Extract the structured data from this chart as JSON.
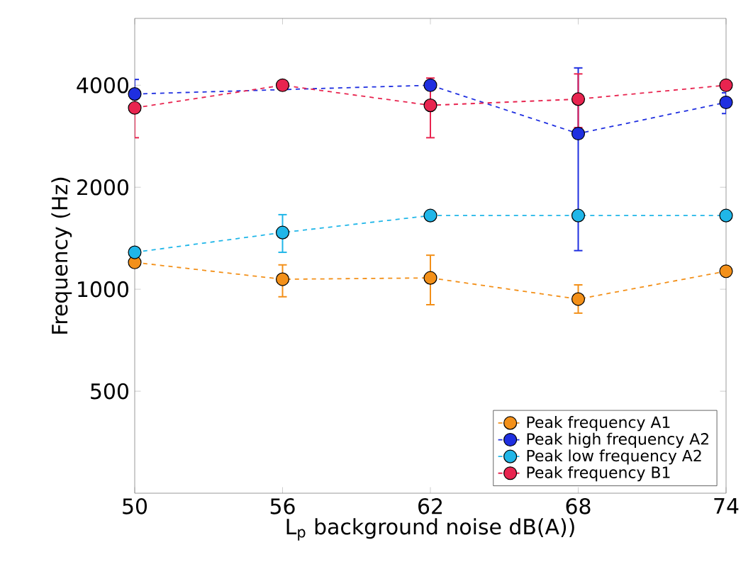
{
  "chart_data": {
    "type": "line",
    "xlabel": "L$_{p}$ background noise dB(A))",
    "ylabel": "Frequency (Hz)",
    "x": [
      50,
      56,
      62,
      68,
      74
    ],
    "log": "y",
    "xlim": [
      50,
      74
    ],
    "xticks": [
      50,
      56,
      62,
      68,
      74
    ],
    "ylim": [
      250,
      6300
    ],
    "yticks": [
      500,
      1000,
      2000,
      4000
    ],
    "marker": "circle",
    "line_style": "dashed",
    "legend": "bottom right",
    "grid": false,
    "series": [
      {
        "name": "Peak frequency A1",
        "color": "#f39019",
        "values": [
          1200,
          1070,
          1080,
          935,
          1130
        ],
        "errors": [
          null,
          [
            950,
            1180
          ],
          [
            900,
            1260
          ],
          [
            850,
            1030
          ],
          null
        ]
      },
      {
        "name": "Peak high frequency A2",
        "color": "#1f2fe0",
        "values": [
          3770,
          null,
          4000,
          2880,
          3560
        ],
        "errors": [
          [
            3400,
            4160
          ],
          null,
          null,
          [
            1300,
            4500
          ],
          [
            3300,
            3800
          ]
        ]
      },
      {
        "name": "Peak low frequency A2",
        "color": "#20b6e8",
        "values": [
          1285,
          1470,
          1650,
          1650,
          1650
        ],
        "errors": [
          null,
          [
            1285,
            1660
          ],
          null,
          null,
          null
        ]
      },
      {
        "name": "Peak frequency B1",
        "color": "#e8244f",
        "values": [
          3430,
          4000,
          3490,
          3640,
          4000
        ],
        "errors": [
          [
            2800,
            3800
          ],
          null,
          [
            2800,
            4200
          ],
          [
            3000,
            4320
          ],
          null
        ]
      }
    ]
  }
}
